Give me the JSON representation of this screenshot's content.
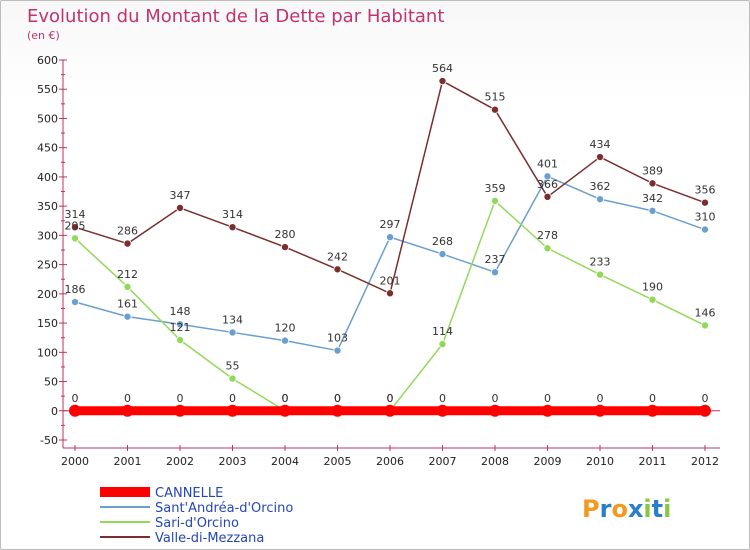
{
  "chart_data": {
    "type": "line",
    "title": "Evolution du Montant de la Dette par Habitant",
    "subtitle": "(en €)",
    "x": [
      "2000",
      "2001",
      "2002",
      "2003",
      "2004",
      "2005",
      "2006",
      "2007",
      "2008",
      "2009",
      "2010",
      "2011",
      "2012"
    ],
    "ylim": [
      -50,
      600
    ],
    "yticks": [
      -50,
      0,
      50,
      100,
      150,
      200,
      250,
      300,
      350,
      400,
      450,
      500,
      550,
      600
    ],
    "grid": false,
    "legend_placement": "bottom-left",
    "series": [
      {
        "name": "CANNELLE",
        "color": "#ff0000",
        "values": [
          0,
          0,
          0,
          0,
          0,
          0,
          0,
          0,
          0,
          0,
          0,
          0,
          0
        ]
      },
      {
        "name": "Sant'Andréa-d'Orcino",
        "color": "#6a9fd1",
        "values": [
          186,
          161,
          148,
          134,
          120,
          103,
          297,
          268,
          237,
          401,
          362,
          342,
          310
        ]
      },
      {
        "name": "Sari-d'Orcino",
        "color": "#92d95a",
        "values": [
          295,
          212,
          121,
          55,
          0,
          0,
          0,
          114,
          359,
          278,
          233,
          190,
          146
        ]
      },
      {
        "name": "Valle-di-Mezzana",
        "color": "#7a2e2e",
        "values": [
          314,
          286,
          347,
          314,
          280,
          242,
          201,
          564,
          515,
          366,
          434,
          389,
          356
        ]
      }
    ]
  },
  "watermark": "Proxiti"
}
